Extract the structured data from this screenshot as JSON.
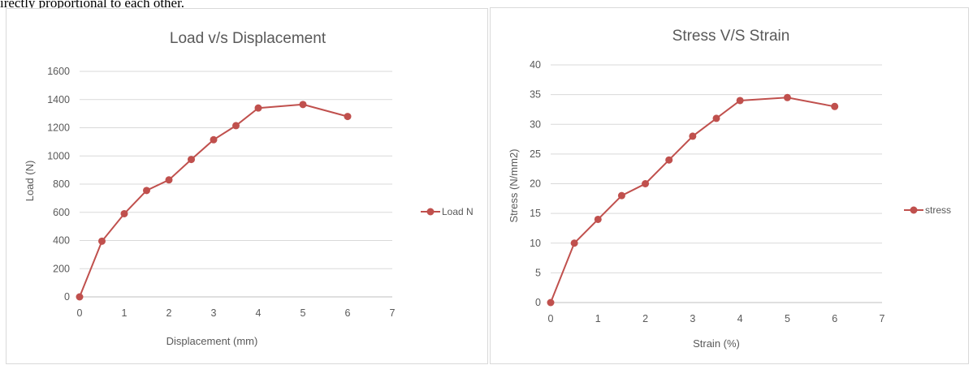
{
  "top_text": "irectly proportional to each other.",
  "chart_data": [
    {
      "type": "line",
      "title": "Load  v/s Displacement",
      "xlabel": "Displacement (mm)",
      "ylabel": "Load (N)",
      "xlim": [
        0,
        7
      ],
      "ylim": [
        0,
        1600
      ],
      "x_ticks": [
        "0",
        "1",
        "2",
        "3",
        "4",
        "5",
        "6",
        "7"
      ],
      "y_ticks": [
        "0",
        "200",
        "400",
        "600",
        "800",
        "1000",
        "1200",
        "1400",
        "1600"
      ],
      "grid": true,
      "legend_position": "right",
      "series": [
        {
          "name": "Load N",
          "color": "#c0504d",
          "points": [
            [
              0,
              0
            ],
            [
              0.5,
              395
            ],
            [
              1,
              590
            ],
            [
              1.5,
              755
            ],
            [
              2,
              830
            ],
            [
              2.5,
              975
            ],
            [
              3,
              1115
            ],
            [
              3.5,
              1215
            ],
            [
              4,
              1340
            ],
            [
              5,
              1365
            ],
            [
              6,
              1280
            ]
          ]
        }
      ]
    },
    {
      "type": "line",
      "title": "Stress V/S Strain",
      "xlabel": "Strain (%)",
      "ylabel": "Stress (N/mm2)",
      "xlim": [
        0,
        7
      ],
      "ylim": [
        0,
        40
      ],
      "x_ticks": [
        "0",
        "1",
        "2",
        "3",
        "4",
        "5",
        "6",
        "7"
      ],
      "y_ticks": [
        "0",
        "5",
        "10",
        "15",
        "20",
        "25",
        "30",
        "35",
        "40"
      ],
      "grid": true,
      "legend_position": "right",
      "series": [
        {
          "name": "stress",
          "color": "#c0504d",
          "points": [
            [
              0,
              0
            ],
            [
              0.5,
              10
            ],
            [
              1,
              14
            ],
            [
              1.5,
              18
            ],
            [
              2,
              20
            ],
            [
              2.5,
              24
            ],
            [
              3,
              28
            ],
            [
              3.5,
              31
            ],
            [
              4,
              34
            ],
            [
              5,
              34.5
            ],
            [
              6,
              33
            ]
          ]
        }
      ]
    }
  ]
}
